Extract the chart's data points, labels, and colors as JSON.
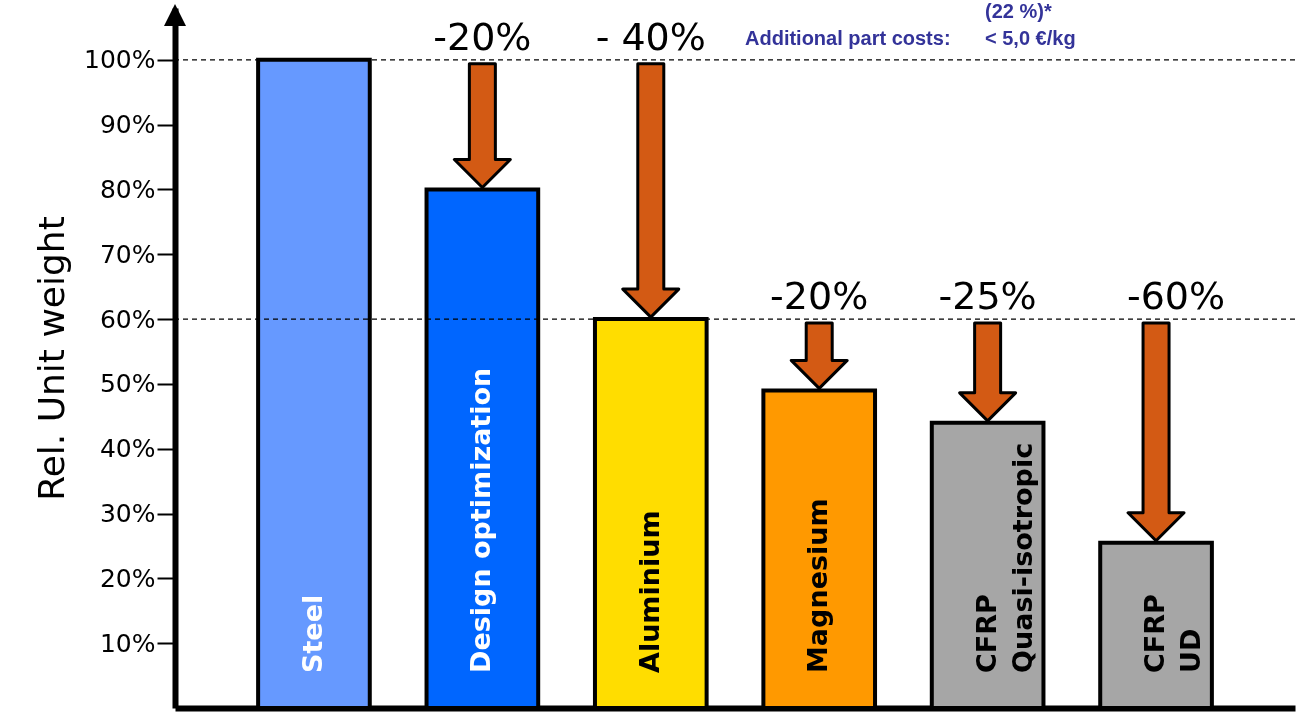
{
  "chart_data": {
    "type": "bar",
    "categories": [
      "Steel",
      "Design optimization",
      "Aluminium",
      "Magnesium",
      "CFRP\nQuasi-isotropic",
      "CFRP\nUD"
    ],
    "values": [
      100,
      80,
      60,
      49,
      44,
      25.5
    ],
    "colors": [
      "#6699ff",
      "#0066ff",
      "#ffdd00",
      "#ff9900",
      "#a6a6a6",
      "#a6a6a6"
    ],
    "ylabel": "Rel. Unit weight",
    "ylim": [
      0,
      108
    ],
    "yticks": [
      {
        "value": 10,
        "label": "10%"
      },
      {
        "value": 20,
        "label": "20%"
      },
      {
        "value": 30,
        "label": "30%"
      },
      {
        "value": 40,
        "label": "40%"
      },
      {
        "value": 50,
        "label": "50%"
      },
      {
        "value": 60,
        "label": "60%"
      },
      {
        "value": 70,
        "label": "70%"
      },
      {
        "value": 80,
        "label": "80%"
      },
      {
        "value": 90,
        "label": "90%"
      },
      {
        "value": 100,
        "label": "100%"
      }
    ],
    "tick_labels": "y",
    "grid": false,
    "ref_lines": [
      {
        "axis": "y",
        "value": 100,
        "line_style": "dashed",
        "color": "#000000"
      },
      {
        "axis": "y",
        "value": 60,
        "line_style": "dashed",
        "color": "#000000"
      }
    ],
    "annotations": [
      {
        "text": "-20%",
        "x": "Design optimization",
        "y": 100
      },
      {
        "text": "- 40%",
        "x": "Aluminium",
        "y": 100
      },
      {
        "text": "-20%",
        "x": "Magnesium",
        "y": 60
      },
      {
        "text": "-25%",
        "x": "CFRP\nQuasi-isotropic",
        "y": 60
      },
      {
        "text": "-60%",
        "x": "CFRP\nUD",
        "y": 60
      },
      "(22 %)*",
      "Additional part costs:",
      "< 5,0 €/kg"
    ]
  }
}
